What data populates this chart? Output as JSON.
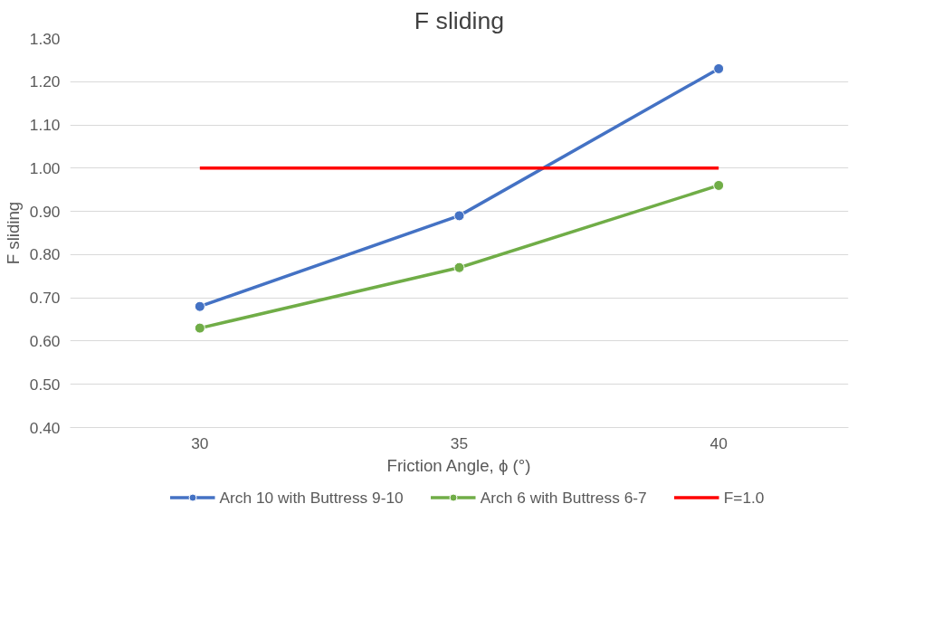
{
  "chart_data": {
    "type": "line",
    "title": "F sliding",
    "xlabel": "Friction Angle, ϕ (°)",
    "ylabel": "F sliding",
    "categories": [
      "30",
      "35",
      "40"
    ],
    "series": [
      {
        "name": "Arch 10 with Buttress 9-10",
        "color": "#4472c4",
        "marker": "circle",
        "values": [
          0.68,
          0.89,
          1.23
        ]
      },
      {
        "name": "Arch 6 with Buttress 6-7",
        "color": "#70ad47",
        "marker": "circle",
        "values": [
          0.63,
          0.77,
          0.96
        ]
      },
      {
        "name": "F=1.0",
        "color": "#ff0000",
        "marker": "none",
        "values": [
          1.0,
          1.0,
          1.0
        ]
      }
    ],
    "ylim": [
      0.4,
      1.3
    ],
    "yticks": [
      {
        "value": 0.4,
        "label": "0.40"
      },
      {
        "value": 0.5,
        "label": "0.50"
      },
      {
        "value": 0.6,
        "label": "0.60"
      },
      {
        "value": 0.7,
        "label": "0.70"
      },
      {
        "value": 0.8,
        "label": "0.80"
      },
      {
        "value": 0.9,
        "label": "0.90"
      },
      {
        "value": 1.0,
        "label": "1.00"
      },
      {
        "value": 1.1,
        "label": "1.10"
      },
      {
        "value": 1.2,
        "label": "1.20"
      },
      {
        "value": 1.3,
        "label": "1.30"
      }
    ],
    "grid": "y",
    "legend": "bottom",
    "line_style": "solid"
  }
}
